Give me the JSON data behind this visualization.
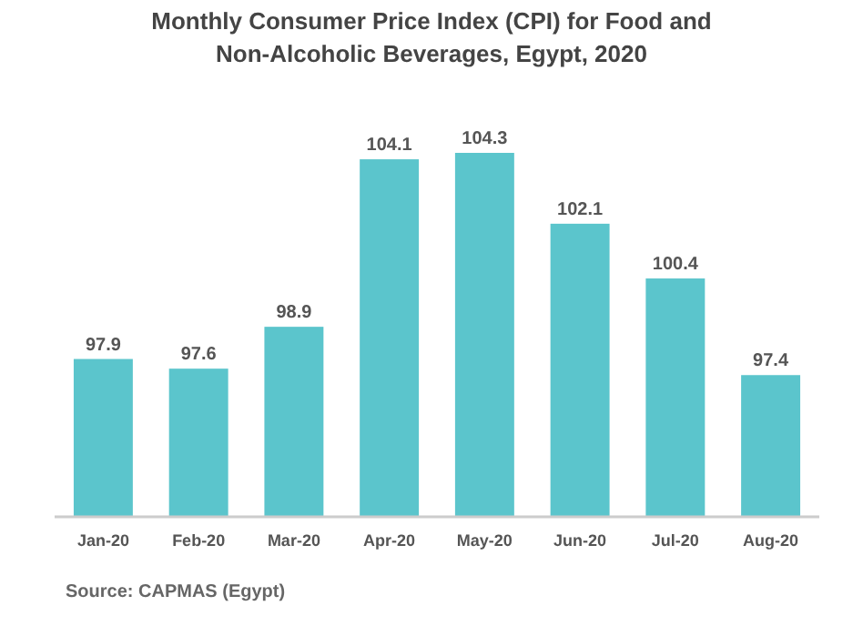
{
  "chart_data": {
    "type": "bar",
    "title": "Monthly Consumer Price Index (CPI) for Food and Non-Alcoholic Beverages, Egypt, 2020",
    "categories": [
      "Jan-20",
      "Feb-20",
      "Mar-20",
      "Apr-20",
      "May-20",
      "Jun-20",
      "Jul-20",
      "Aug-20"
    ],
    "values": [
      97.9,
      97.6,
      98.9,
      104.1,
      104.3,
      102.1,
      100.4,
      97.4
    ],
    "color": "#5bc5cc",
    "ylim": [
      93,
      104.3
    ],
    "tick_labels": "x",
    "data_labels": true,
    "annotations": [
      "Source: CAPMAS (Egypt)"
    ]
  }
}
